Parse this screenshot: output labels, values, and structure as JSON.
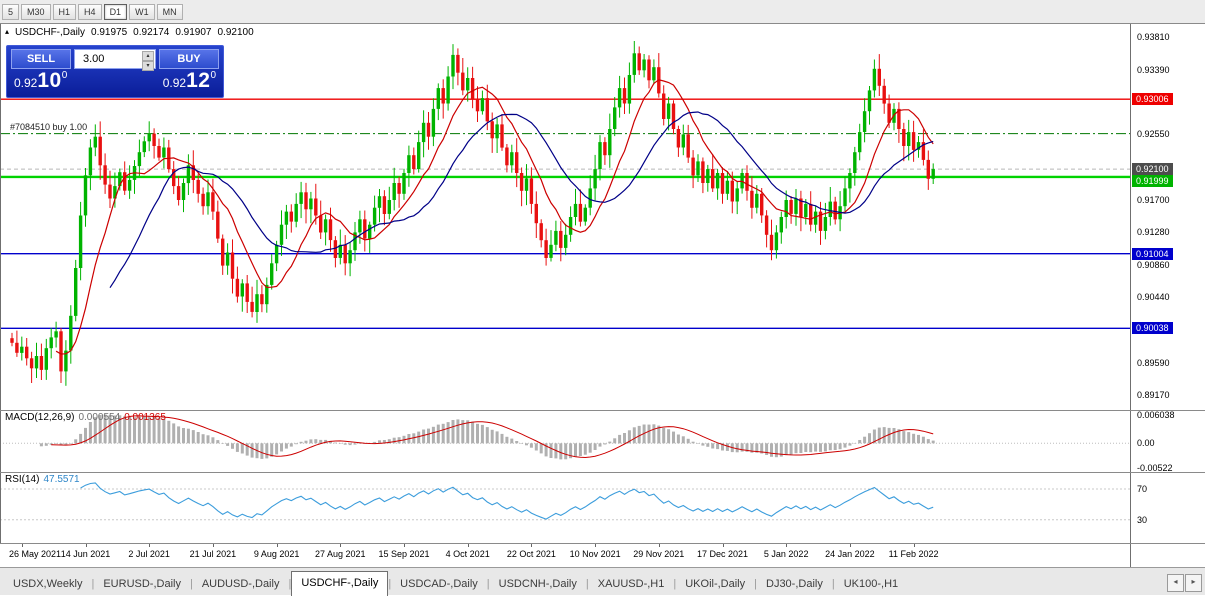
{
  "icons": {
    "collapse": "▴",
    "spin_up": "▴",
    "spin_down": "▾",
    "tab_left": "◂",
    "tab_right": "▸"
  },
  "toolbar": {
    "timeframes": [
      "5",
      "M30",
      "H1",
      "H4",
      "D1",
      "W1",
      "MN"
    ],
    "active": "D1"
  },
  "header": {
    "symbol": "USDCHF-,Daily",
    "open": "0.91975",
    "high": "0.92174",
    "low": "0.91907",
    "close": "0.92100"
  },
  "trade_panel": {
    "sell_label": "SELL",
    "buy_label": "BUY",
    "lot": "3.00",
    "sell_price": {
      "prefix": "0.92",
      "pips": "10",
      "sup": "0"
    },
    "buy_price": {
      "prefix": "0.92",
      "pips": "12",
      "sup": "0"
    }
  },
  "position": {
    "label": "#7084510 buy 1.00",
    "price": 0.9256
  },
  "hlines": [
    {
      "price": 0.93006,
      "color": "#ee0000",
      "width": 1.4,
      "style": "solid"
    },
    {
      "price": 0.9256,
      "color": "#007800",
      "width": 1,
      "style": "dashdot"
    },
    {
      "price": 0.921,
      "color": "#b8b8b8",
      "width": 1,
      "style": "dashed"
    },
    {
      "price": 0.91999,
      "color": "#00d300",
      "width": 2.4,
      "style": "solid"
    },
    {
      "price": 0.91004,
      "color": "#0000cc",
      "width": 1.4,
      "style": "solid"
    },
    {
      "price": 0.90038,
      "color": "#0000cc",
      "width": 1.4,
      "style": "solid"
    }
  ],
  "price_axis": {
    "ticks": [
      {
        "label": "0.93810",
        "price": 0.9381
      },
      {
        "label": "0.93390",
        "price": 0.9339
      },
      {
        "label": "0.92550",
        "price": 0.9255
      },
      {
        "label": "0.91700",
        "price": 0.917
      },
      {
        "label": "0.91280",
        "price": 0.9128
      },
      {
        "label": "0.90860",
        "price": 0.9086
      },
      {
        "label": "0.90440",
        "price": 0.9044
      },
      {
        "label": "0.89590",
        "price": 0.8959
      },
      {
        "label": "0.89170",
        "price": 0.8917
      }
    ],
    "line_labels": [
      {
        "label": "0.93006",
        "price": 0.93006,
        "bg": "#ee0000"
      },
      {
        "label": "0.92100",
        "price": 0.921,
        "bg": "#4d4d4d"
      },
      {
        "label": "0.91999",
        "price": 0.91999,
        "bg": "#00b300"
      },
      {
        "label": "0.91004",
        "price": 0.91004,
        "bg": "#0000cc"
      },
      {
        "label": "0.90038",
        "price": 0.90038,
        "bg": "#0000cc"
      }
    ]
  },
  "chart_data": {
    "type": "candlestick",
    "symbol": "USDCHF",
    "timeframe": "Daily",
    "price_range": {
      "top": 0.9398,
      "bottom": 0.8898
    },
    "colors": {
      "up": "#00b300",
      "down": "#e81010"
    },
    "closes": [
      0.8985,
      0.8972,
      0.898,
      0.8965,
      0.8952,
      0.8968,
      0.895,
      0.8978,
      0.8992,
      0.9,
      0.8948,
      0.8975,
      0.902,
      0.9082,
      0.915,
      0.9202,
      0.9238,
      0.9252,
      0.9215,
      0.919,
      0.9172,
      0.9188,
      0.9206,
      0.9182,
      0.9196,
      0.9214,
      0.9232,
      0.9246,
      0.9256,
      0.924,
      0.9225,
      0.9238,
      0.921,
      0.9188,
      0.917,
      0.9192,
      0.9215,
      0.9196,
      0.9178,
      0.9162,
      0.918,
      0.9155,
      0.912,
      0.9085,
      0.9102,
      0.9068,
      0.9045,
      0.9062,
      0.9038,
      0.9025,
      0.9048,
      0.9035,
      0.906,
      0.9088,
      0.9112,
      0.9138,
      0.9155,
      0.9142,
      0.9165,
      0.918,
      0.9158,
      0.9172,
      0.915,
      0.9128,
      0.9145,
      0.9118,
      0.9095,
      0.9112,
      0.9088,
      0.9105,
      0.9128,
      0.9145,
      0.912,
      0.9138,
      0.916,
      0.9175,
      0.9152,
      0.917,
      0.9192,
      0.9178,
      0.9205,
      0.9228,
      0.921,
      0.9245,
      0.927,
      0.9252,
      0.9288,
      0.9315,
      0.9295,
      0.933,
      0.9358,
      0.9335,
      0.9312,
      0.9328,
      0.93,
      0.9285,
      0.9302,
      0.9272,
      0.925,
      0.9268,
      0.9238,
      0.9215,
      0.9232,
      0.9205,
      0.9182,
      0.9198,
      0.9165,
      0.914,
      0.9118,
      0.9095,
      0.9112,
      0.913,
      0.9108,
      0.9125,
      0.9148,
      0.9165,
      0.9142,
      0.916,
      0.9185,
      0.921,
      0.9245,
      0.9228,
      0.9262,
      0.929,
      0.9315,
      0.9295,
      0.9332,
      0.936,
      0.9338,
      0.9352,
      0.9325,
      0.9342,
      0.9308,
      0.9275,
      0.9295,
      0.9262,
      0.9238,
      0.9255,
      0.9225,
      0.9202,
      0.922,
      0.9192,
      0.921,
      0.9185,
      0.9205,
      0.9178,
      0.9195,
      0.9168,
      0.9185,
      0.9205,
      0.9182,
      0.916,
      0.9178,
      0.915,
      0.9125,
      0.9105,
      0.9128,
      0.9148,
      0.917,
      0.9152,
      0.9172,
      0.9148,
      0.9165,
      0.9138,
      0.9155,
      0.913,
      0.9148,
      0.9168,
      0.9145,
      0.9162,
      0.9185,
      0.9205,
      0.9232,
      0.9258,
      0.9285,
      0.9312,
      0.934,
      0.9318,
      0.9295,
      0.927,
      0.9288,
      0.9262,
      0.924,
      0.9258,
      0.9235,
      0.9245,
      0.9222,
      0.91975,
      0.921
    ],
    "extremes": {
      "10": {
        "l": 0.8933
      },
      "17": {
        "h": 0.9268
      },
      "28": {
        "h": 0.9272
      },
      "49": {
        "l": 0.9018
      },
      "90": {
        "h": 0.9372
      },
      "109": {
        "l": 0.9085
      },
      "127": {
        "h": 0.9376
      },
      "155": {
        "l": 0.9092
      },
      "176": {
        "h": 0.9352
      }
    },
    "last_candle": {
      "o": 0.91975,
      "h": 0.92174,
      "l": 0.91907,
      "c": 0.921
    },
    "date_ticks": [
      {
        "label": "26 May 2021",
        "index": 2
      },
      {
        "label": "14 Jun 2021",
        "index": 15
      },
      {
        "label": "2 Jul 2021",
        "index": 28
      },
      {
        "label": "21 Jul 2021",
        "index": 41
      },
      {
        "label": "9 Aug 2021",
        "index": 54
      },
      {
        "label": "27 Aug 2021",
        "index": 67
      },
      {
        "label": "15 Sep 2021",
        "index": 80
      },
      {
        "label": "4 Oct 2021",
        "index": 93
      },
      {
        "label": "22 Oct 2021",
        "index": 106
      },
      {
        "label": "10 Nov 2021",
        "index": 119
      },
      {
        "label": "29 Nov 2021",
        "index": 132
      },
      {
        "label": "17 Dec 2021",
        "index": 145
      },
      {
        "label": "5 Jan 2022",
        "index": 158
      },
      {
        "label": "24 Jan 2022",
        "index": 171
      },
      {
        "label": "11 Feb 2022",
        "index": 184
      }
    ],
    "overlays": [
      {
        "name": "ma-fast",
        "type": "sma",
        "period": 10,
        "color": "#cc0000"
      },
      {
        "name": "ma-slow",
        "type": "sma",
        "period": 21,
        "color": "#000087"
      }
    ]
  },
  "macd": {
    "label": "MACD(12,26,9)",
    "value_main": "0.000554",
    "value_signal": "0.001365",
    "params": {
      "fast": 12,
      "slow": 26,
      "signal": 9
    },
    "range": {
      "max": 0.0072,
      "min": -0.0062
    },
    "axis": [
      {
        "label": "0.006038",
        "value": 0.006038
      },
      {
        "label": "0.00",
        "value": 0
      },
      {
        "label": "-0.00522",
        "value": -0.00522
      }
    ],
    "colors": {
      "histogram": "#b0b0b0",
      "signal": "#cc0000"
    }
  },
  "rsi": {
    "label": "RSI(14)",
    "value": "47.5571",
    "period": 14,
    "levels": [
      70,
      30
    ],
    "range": {
      "max": 92,
      "min": 0
    },
    "axis": [
      {
        "label": "70",
        "value": 70
      },
      {
        "label": "30",
        "value": 30
      }
    ],
    "color": "#3c9ddc"
  },
  "tabs": {
    "items": [
      "USDX,Weekly",
      "EURUSD-,Daily",
      "AUDUSD-,Daily",
      "USDCHF-,Daily",
      "USDCAD-,Daily",
      "USDCNH-,Daily",
      "XAUUSD-,H1",
      "UKOil-,Daily",
      "DJ30-,Daily",
      "UK100-,H1"
    ],
    "active": "USDCHF-,Daily"
  }
}
